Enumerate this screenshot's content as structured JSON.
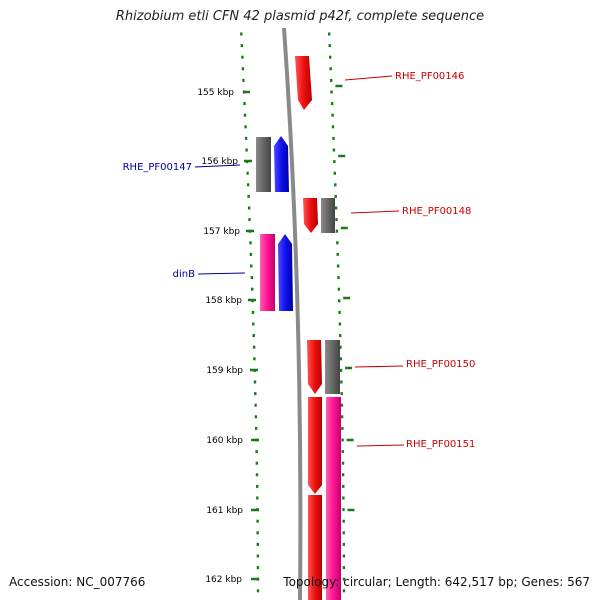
{
  "title": "Rhizobium etli CFN 42 plasmid p42f, complete sequence",
  "footer": {
    "accession": "Accession: NC_007766",
    "stats": "Topology: circular; Length: 642,517 bp; Genes: 567"
  },
  "colors": {
    "tick": "#1a7a1a",
    "backbone": "#8a8a8a",
    "forward": "#ee1111",
    "other": "#666666",
    "reverse_blue": "#1010ee",
    "reverse_pink": "#ff1493",
    "label_red": "#cc0000",
    "label_blue": "#000099"
  },
  "scale": {
    "labels": [
      "155 kbp",
      "156 kbp",
      "157 kbp",
      "158 kbp",
      "159 kbp",
      "160 kbp",
      "161 kbp",
      "162 kbp"
    ]
  },
  "genes": [
    {
      "label": "RHE_PF00146"
    },
    {
      "label": "RHE_PF00147"
    },
    {
      "label": "RHE_PF00148"
    },
    {
      "label": "dinB"
    },
    {
      "label": "RHE_PF00150"
    },
    {
      "label": "RHE_PF00151"
    }
  ]
}
